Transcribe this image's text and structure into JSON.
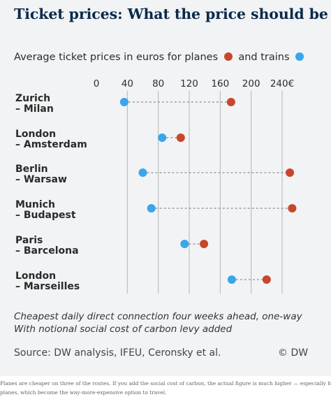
{
  "title": "Ticket prices: What the price should be",
  "subtitle": {
    "text_before": "Average ticket prices in euros for planes",
    "text_between": "and trains"
  },
  "colors": {
    "planes": "#c8472b",
    "trains": "#3aa5ea",
    "grid": "#b5b5b5",
    "connector": "#777777",
    "background": "#f1f3f5"
  },
  "chart_data": {
    "type": "dumbbell",
    "xlim": [
      0,
      240
    ],
    "ticks": [
      "0",
      "40",
      "80",
      "120",
      "160",
      "200",
      "240€"
    ],
    "tick_values": [
      0,
      40,
      80,
      120,
      160,
      200,
      240
    ],
    "rows": [
      {
        "line1": "Zurich",
        "line2": "– Milan",
        "trains": 36,
        "planes": 174
      },
      {
        "line1": "London",
        "line2": "– Amsterdam",
        "trains": 85,
        "planes": 109
      },
      {
        "line1": "Berlin",
        "line2": "– Warsaw",
        "trains": 60,
        "planes": 250
      },
      {
        "line1": "Munich",
        "line2": "– Budapest",
        "trains": 71,
        "planes": 253
      },
      {
        "line1": "Paris",
        "line2": "– Barcelona",
        "trains": 114,
        "planes": 139
      },
      {
        "line1": "London",
        "line2": "– Marseilles",
        "trains": 175,
        "planes": 220
      }
    ]
  },
  "note": {
    "line1": "Cheapest daily direct connection four weeks ahead, one-way",
    "line2": "With notional social cost of carbon levy added"
  },
  "source": "Source: DW analysis, IFEU, Ceronsky et al.",
  "credit": "© DW",
  "caption": {
    "line1": "Planes are cheaper on three of the routes. If you add the social cost of carbon, the actual figure is much higher — especially for",
    "line2": "planes, which become the way-more-expensive option to travel."
  }
}
